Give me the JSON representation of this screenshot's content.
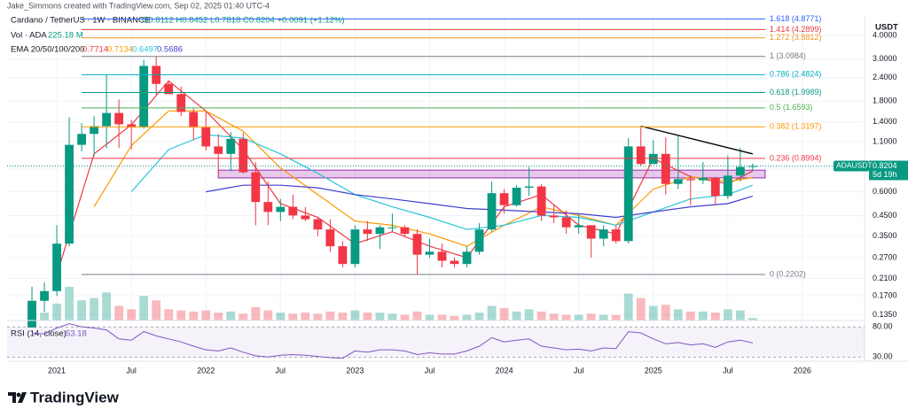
{
  "header": {
    "credit": "Jake_Simmons created with TradingView.com, Sep 02, 2025 01:40 UTC-4"
  },
  "chart_data": {
    "type": "candlestick",
    "symbol": "Cardano / TetherUS · 1W · BINANCE",
    "ohlc_text": "O0.8112 H0.8452 L0.7818 C0.8204 +0.0091 (+1.12%)",
    "volume_label": "Vol · ADA",
    "volume_text": "225.18 M",
    "ema_label": "EMA 20/50/100/200",
    "currency": "USDT",
    "log_scale": true,
    "grid": true,
    "up_color": "#089981",
    "down_color": "#f23645",
    "x": [
      "2020-11",
      "2020-12",
      "2021-01",
      "2021-02",
      "2021-03",
      "2021-04",
      "2021-05",
      "2021-06",
      "2021-07",
      "2021-08",
      "2021-09",
      "2021-10",
      "2021-11",
      "2021-12",
      "2022-01",
      "2022-02",
      "2022-03",
      "2022-04",
      "2022-05",
      "2022-06",
      "2022-07",
      "2022-08",
      "2022-09",
      "2022-10",
      "2022-11",
      "2022-12",
      "2023-01",
      "2023-02",
      "2023-03",
      "2023-04",
      "2023-05",
      "2023-06",
      "2023-07",
      "2023-08",
      "2023-09",
      "2023-10",
      "2023-11",
      "2023-12",
      "2024-01",
      "2024-02",
      "2024-03",
      "2024-04",
      "2024-05",
      "2024-06",
      "2024-07",
      "2024-08",
      "2024-09",
      "2024-10",
      "2024-11",
      "2024-12",
      "2025-01",
      "2025-02",
      "2025-03",
      "2025-04",
      "2025-05",
      "2025-06",
      "2025-07",
      "2025-08",
      "2025-09"
    ],
    "open": [
      0.097,
      0.16,
      0.18,
      0.32,
      1.06,
      1.21,
      1.33,
      1.56,
      1.36,
      1.31,
      2.76,
      2.22,
      1.96,
      1.58,
      1.31,
      1.04,
      0.95,
      1.14,
      0.76,
      0.53,
      0.47,
      0.5,
      0.45,
      0.43,
      0.38,
      0.31,
      0.25,
      0.38,
      0.36,
      0.39,
      0.39,
      0.36,
      0.28,
      0.29,
      0.26,
      0.25,
      0.29,
      0.38,
      0.59,
      0.51,
      0.63,
      0.64,
      0.45,
      0.44,
      0.39,
      0.4,
      0.34,
      0.38,
      0.33,
      1.04,
      0.84,
      0.95,
      0.66,
      0.7,
      0.69,
      0.71,
      0.57,
      0.73,
      0.8112
    ],
    "high": [
      0.19,
      0.2,
      0.4,
      1.48,
      1.38,
      1.5,
      2.47,
      1.84,
      1.43,
      2.97,
      3.1,
      2.32,
      2.15,
      1.65,
      1.6,
      1.21,
      1.24,
      1.23,
      0.86,
      0.68,
      0.55,
      0.58,
      0.5,
      0.44,
      0.43,
      0.33,
      0.4,
      0.42,
      0.4,
      0.46,
      0.4,
      0.38,
      0.34,
      0.32,
      0.27,
      0.31,
      0.41,
      0.68,
      0.62,
      0.65,
      0.81,
      0.66,
      0.51,
      0.48,
      0.46,
      0.4,
      0.4,
      0.4,
      1.15,
      1.33,
      1.12,
      1.16,
      1.18,
      0.73,
      0.86,
      0.72,
      0.93,
      1.02,
      0.8452
    ],
    "low": [
      0.095,
      0.14,
      0.17,
      0.31,
      0.98,
      0.92,
      1.02,
      1.02,
      1.0,
      1.29,
      1.94,
      1.98,
      1.5,
      1.12,
      0.99,
      0.74,
      0.77,
      0.75,
      0.4,
      0.4,
      0.42,
      0.43,
      0.42,
      0.35,
      0.29,
      0.24,
      0.24,
      0.33,
      0.3,
      0.37,
      0.35,
      0.22,
      0.27,
      0.24,
      0.24,
      0.24,
      0.28,
      0.37,
      0.46,
      0.5,
      0.57,
      0.42,
      0.41,
      0.36,
      0.36,
      0.27,
      0.31,
      0.32,
      0.32,
      0.82,
      0.85,
      0.58,
      0.62,
      0.51,
      0.66,
      0.51,
      0.55,
      0.68,
      0.7818
    ],
    "close": [
      0.16,
      0.18,
      0.32,
      1.06,
      1.21,
      1.33,
      1.56,
      1.36,
      1.31,
      2.76,
      2.22,
      1.96,
      1.58,
      1.31,
      1.04,
      0.95,
      1.14,
      0.76,
      0.53,
      0.47,
      0.5,
      0.45,
      0.43,
      0.38,
      0.31,
      0.25,
      0.38,
      0.36,
      0.39,
      0.39,
      0.36,
      0.28,
      0.29,
      0.26,
      0.25,
      0.29,
      0.38,
      0.59,
      0.51,
      0.63,
      0.64,
      0.45,
      0.44,
      0.39,
      0.4,
      0.34,
      0.38,
      0.33,
      1.04,
      0.84,
      0.95,
      0.66,
      0.7,
      0.69,
      0.71,
      0.57,
      0.73,
      0.8112,
      0.8204
    ],
    "volume": [
      900,
      700,
      1500,
      3000,
      1800,
      2000,
      2500,
      1300,
      1000,
      2200,
      1800,
      1000,
      900,
      800,
      900,
      700,
      800,
      600,
      1200,
      900,
      700,
      600,
      700,
      600,
      800,
      700,
      900,
      700,
      700,
      600,
      500,
      800,
      500,
      500,
      400,
      500,
      700,
      1300,
      1100,
      800,
      1000,
      800,
      600,
      500,
      500,
      600,
      500,
      500,
      2400,
      2000,
      1300,
      1400,
      1000,
      800,
      800,
      700,
      1000,
      900,
      225
    ],
    "xlim": [
      "2020-09",
      "2026-06"
    ],
    "xticks": [
      {
        "value": "2021-01",
        "label": "2021"
      },
      {
        "value": "2021-07",
        "label": "Jul"
      },
      {
        "value": "2022-01",
        "label": "2022"
      },
      {
        "value": "2022-07",
        "label": "Jul"
      },
      {
        "value": "2023-01",
        "label": "2023"
      },
      {
        "value": "2023-07",
        "label": "Jul"
      },
      {
        "value": "2024-01",
        "label": "2024"
      },
      {
        "value": "2024-07",
        "label": "Jul"
      },
      {
        "value": "2025-01",
        "label": "2025"
      },
      {
        "value": "2025-07",
        "label": "Jul"
      },
      {
        "value": "2026-01",
        "label": "2026"
      }
    ],
    "ylim": [
      0.126,
      5.06
    ],
    "yticks": [
      {
        "value": 0.135,
        "label": "0.1350"
      },
      {
        "value": 0.17,
        "label": "0.1700"
      },
      {
        "value": 0.21,
        "label": "0.2100"
      },
      {
        "value": 0.27,
        "label": "0.2700"
      },
      {
        "value": 0.35,
        "label": "0.3500"
      },
      {
        "value": 0.45,
        "label": "0.4500"
      },
      {
        "value": 0.6,
        "label": "0.6000"
      },
      {
        "value": 0.8,
        "label": "0.8000"
      },
      {
        "value": 1.1,
        "label": "1.1000"
      },
      {
        "value": 1.4,
        "label": "1.4000"
      },
      {
        "value": 1.8,
        "label": "1.8000"
      },
      {
        "value": 2.4,
        "label": "2.4000"
      },
      {
        "value": 3,
        "label": "3.0000"
      },
      {
        "value": 4,
        "label": "4.0000"
      }
    ],
    "ema": {
      "x": [
        "2021-01",
        "2021-04",
        "2021-07",
        "2021-10",
        "2022-01",
        "2022-04",
        "2022-07",
        "2022-10",
        "2023-01",
        "2023-04",
        "2023-07",
        "2023-10",
        "2024-01",
        "2024-04",
        "2024-07",
        "2024-10",
        "2025-01",
        "2025-04",
        "2025-07",
        "2025-09"
      ],
      "series": [
        {
          "color": "#f23645",
          "values": [
            0.22,
            0.95,
            1.35,
            2.3,
            1.6,
            1.0,
            0.52,
            0.44,
            0.32,
            0.37,
            0.31,
            0.27,
            0.5,
            0.58,
            0.4,
            0.36,
            0.9,
            0.72,
            0.66,
            0.7714
          ]
        },
        {
          "color": "#ff9800",
          "values": [
            null,
            0.5,
            1.05,
            1.6,
            1.6,
            1.25,
            0.8,
            0.58,
            0.42,
            0.4,
            0.36,
            0.31,
            0.4,
            0.5,
            0.45,
            0.4,
            0.62,
            0.72,
            0.68,
            0.7134
          ]
        },
        {
          "color": "#26c6da",
          "values": [
            null,
            null,
            0.6,
            1.0,
            1.2,
            1.15,
            0.95,
            0.75,
            0.58,
            0.5,
            0.44,
            0.38,
            0.4,
            0.45,
            0.44,
            0.4,
            0.47,
            0.55,
            0.58,
            0.6497
          ]
        },
        {
          "color": "#3f3fcf",
          "values": [
            null,
            null,
            null,
            null,
            0.6,
            0.65,
            0.65,
            0.63,
            0.58,
            0.55,
            0.52,
            0.49,
            0.48,
            0.47,
            0.46,
            0.44,
            0.47,
            0.5,
            0.52,
            0.5686
          ]
        }
      ]
    },
    "fib": {
      "x": [
        "2021-03",
        "2025-10"
      ],
      "levels": [
        {
          "label": "1.618 (4.8771)",
          "value": 4.8771,
          "color": "#2962ff"
        },
        {
          "label": "1.414 (4.2899)",
          "value": 4.2899,
          "color": "#e53935"
        },
        {
          "label": "1.272 (3.8812)",
          "value": 3.8812,
          "color": "#f7931a"
        },
        {
          "label": "1 (3.0984)",
          "value": 3.0984,
          "color": "#787b86"
        },
        {
          "label": "0.786 (2.4824)",
          "value": 2.4824,
          "color": "#00acc1"
        },
        {
          "label": "0.618 (1.9989)",
          "value": 1.9989,
          "color": "#089981"
        },
        {
          "label": "0.5 (1.6593)",
          "value": 1.6593,
          "color": "#4caf50"
        },
        {
          "label": "0.382 (1.3197)",
          "value": 1.3197,
          "color": "#ff9800"
        },
        {
          "label": "0.236 (0.8994)",
          "value": 0.8994,
          "color": "#f23645"
        },
        {
          "label": "0 (0.2202)",
          "value": 0.2202,
          "color": "#787b86"
        }
      ]
    },
    "zone": {
      "x": [
        "2022-02",
        "2025-10"
      ],
      "values": [
        0.71,
        0.78
      ],
      "color": "#9c27b0"
    },
    "trendline": {
      "x": [
        "2024-12",
        "2025-09"
      ],
      "values": [
        1.33,
        0.95
      ],
      "color": "#000000"
    },
    "last_price": {
      "symbol": "ADAUSDT",
      "countdown": "5d 19h",
      "color": "#089981"
    },
    "rsi": {
      "label": "RSI (14, close)",
      "color": "#7e57c2",
      "values": [
        70,
        68,
        78,
        85,
        80,
        78,
        75,
        60,
        58,
        72,
        65,
        60,
        55,
        48,
        42,
        40,
        45,
        38,
        32,
        30,
        33,
        34,
        33,
        31,
        29,
        28,
        40,
        38,
        42,
        42,
        40,
        34,
        37,
        35,
        35,
        40,
        48,
        62,
        55,
        58,
        60,
        48,
        45,
        42,
        43,
        40,
        45,
        44,
        72,
        70,
        60,
        52,
        54,
        50,
        52,
        46,
        55,
        58,
        53.18
      ],
      "ylim": [
        26,
        89
      ],
      "yticks": [
        {
          "value": 80,
          "label": "80.00"
        },
        {
          "value": 30,
          "label": "30.00"
        }
      ]
    }
  },
  "footer": {
    "logo": "TradingView"
  }
}
